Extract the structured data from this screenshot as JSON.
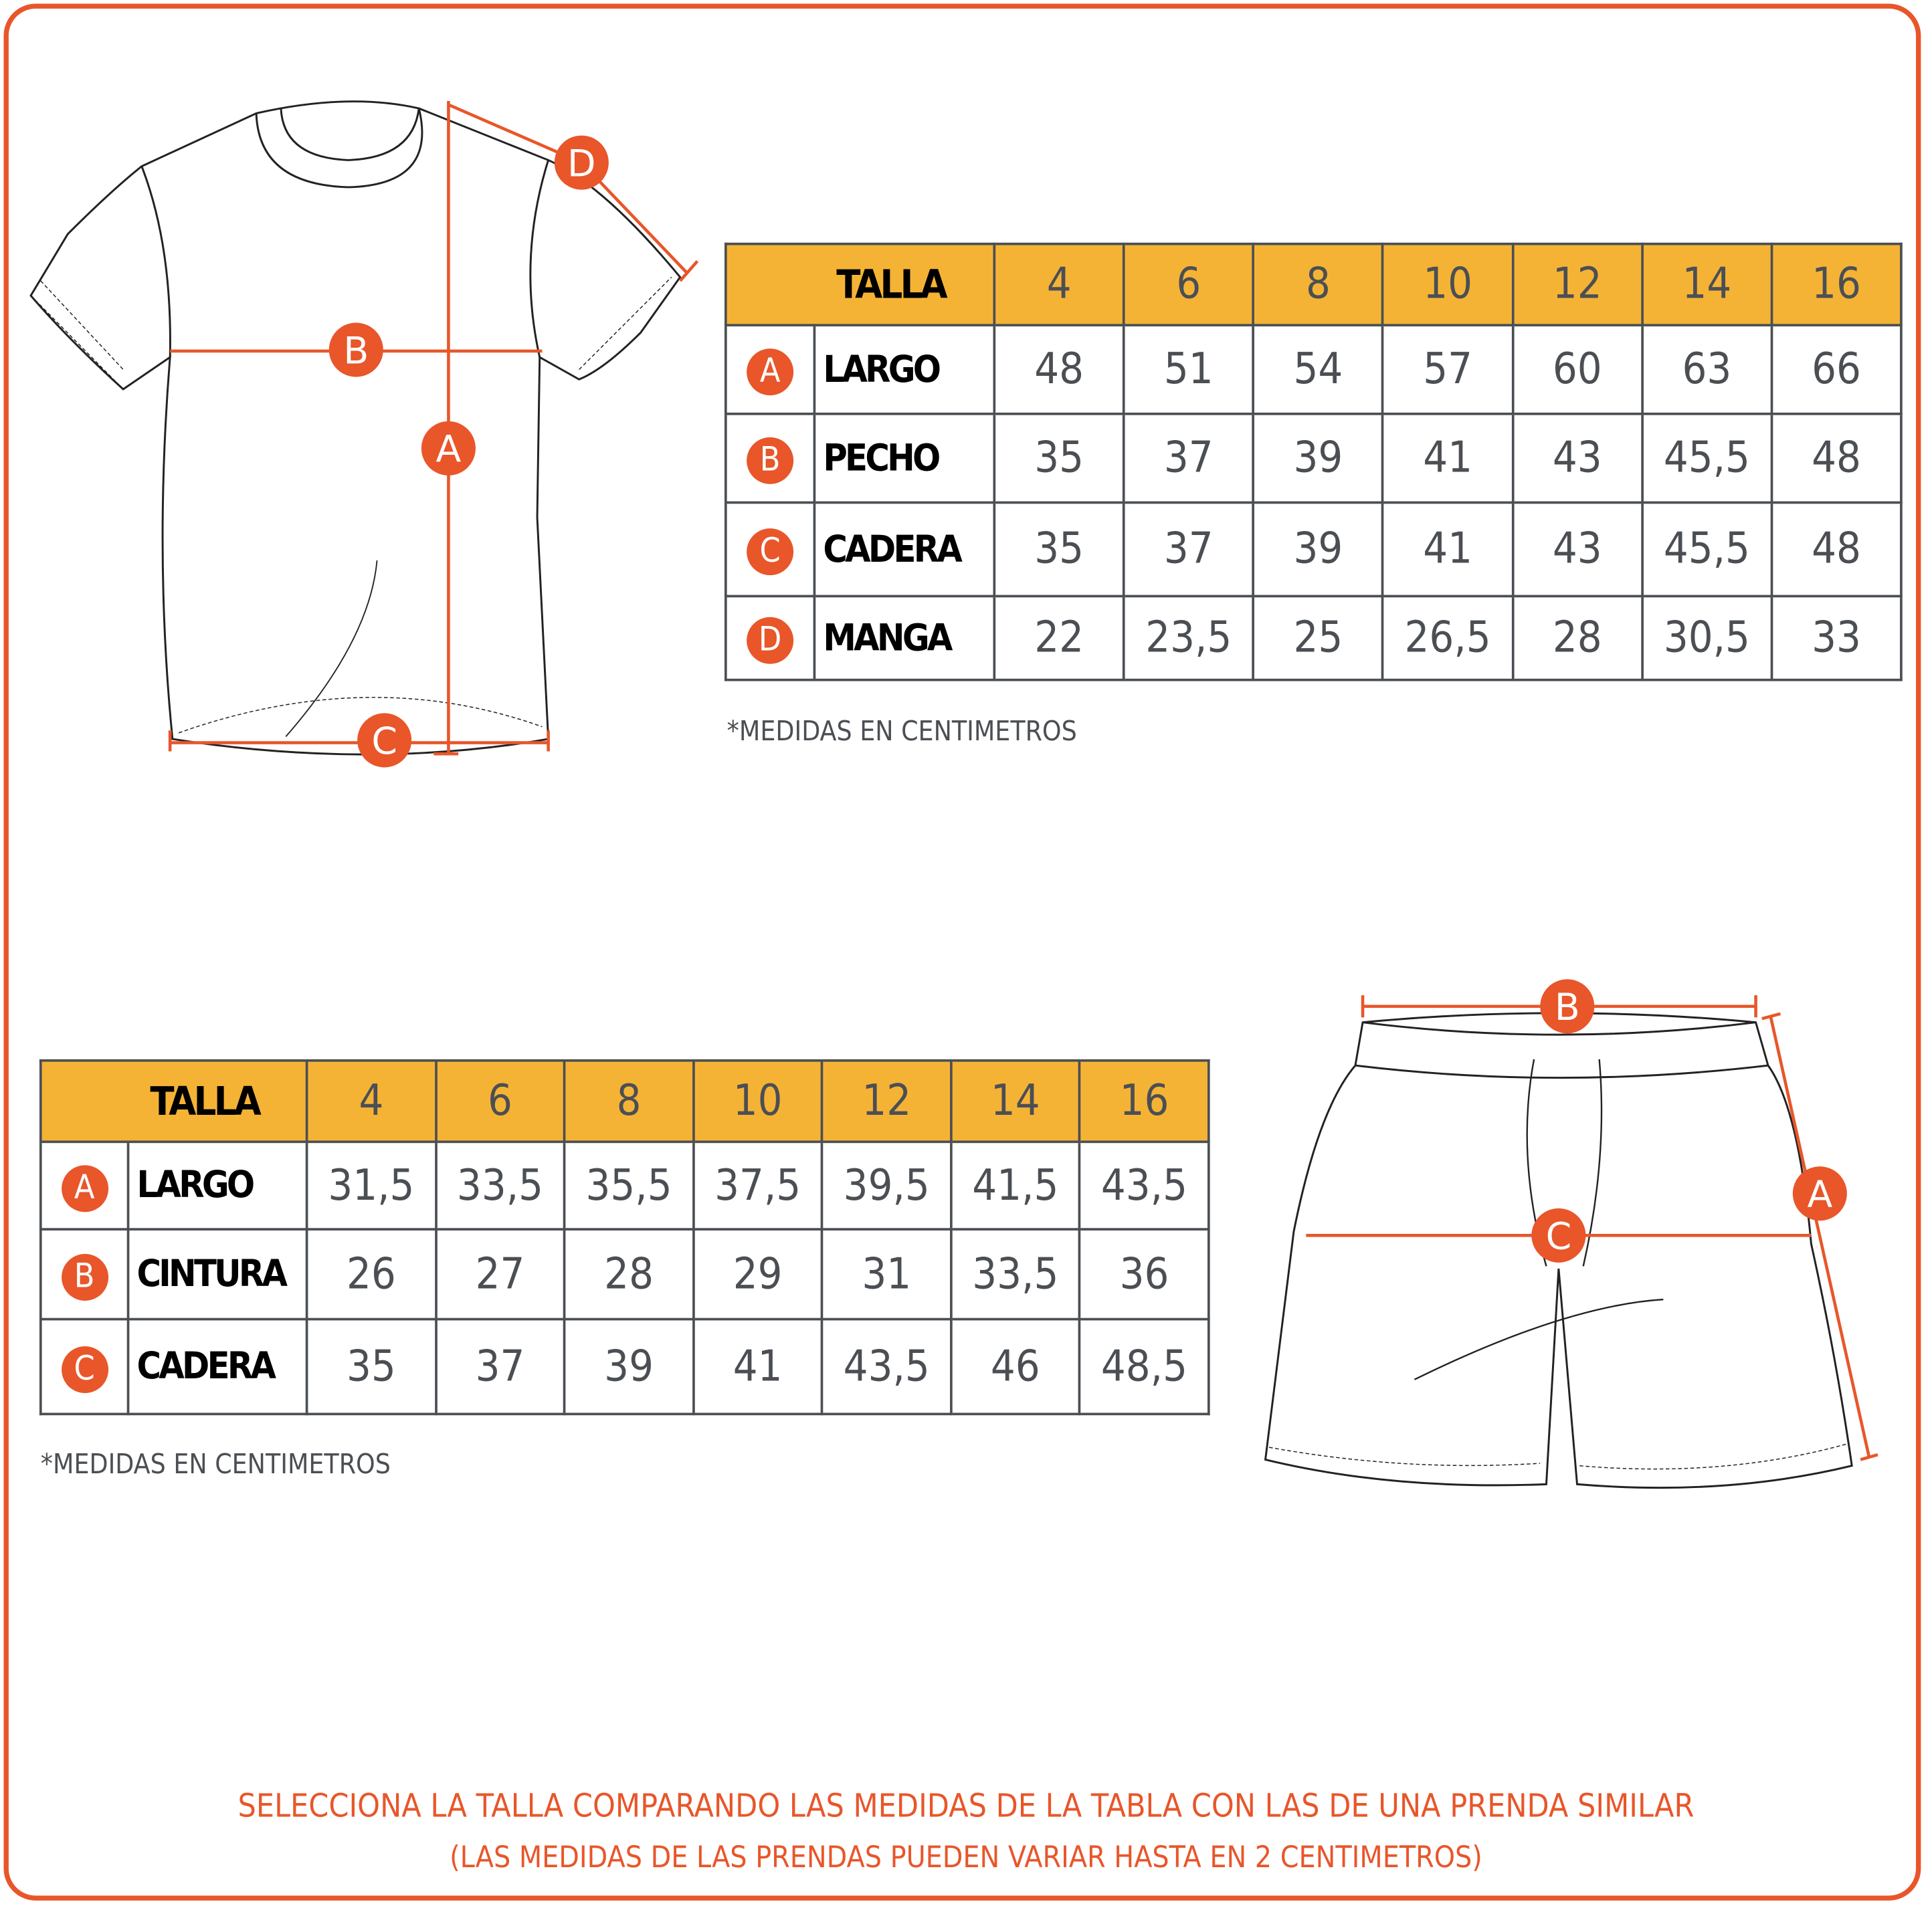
{
  "colors": {
    "accent": "#e8562a",
    "header": "#f5b335",
    "grid": "#4b4f54"
  },
  "shirt": {
    "markers": [
      "A",
      "B",
      "C",
      "D"
    ],
    "table": {
      "header": "TALLA",
      "sizes": [
        "4",
        "6",
        "8",
        "10",
        "12",
        "14",
        "16"
      ],
      "rows": [
        {
          "badge": "A",
          "label": "LARGO",
          "values": [
            "48",
            "51",
            "54",
            "57",
            "60",
            "63",
            "66"
          ]
        },
        {
          "badge": "B",
          "label": "PECHO",
          "values": [
            "35",
            "37",
            "39",
            "41",
            "43",
            "45,5",
            "48"
          ]
        },
        {
          "badge": "C",
          "label": "CADERA",
          "values": [
            "35",
            "37",
            "39",
            "41",
            "43",
            "45,5",
            "48"
          ]
        },
        {
          "badge": "D",
          "label": "MANGA",
          "values": [
            "22",
            "23,5",
            "25",
            "26,5",
            "28",
            "30,5",
            "33"
          ]
        }
      ]
    },
    "note": "*MEDIDAS EN CENTIMETROS"
  },
  "shorts": {
    "markers": [
      "A",
      "B",
      "C"
    ],
    "table": {
      "header": "TALLA",
      "sizes": [
        "4",
        "6",
        "8",
        "10",
        "12",
        "14",
        "16"
      ],
      "rows": [
        {
          "badge": "A",
          "label": "LARGO",
          "values": [
            "31,5",
            "33,5",
            "35,5",
            "37,5",
            "39,5",
            "41,5",
            "43,5"
          ]
        },
        {
          "badge": "B",
          "label": "CINTURA",
          "values": [
            "26",
            "27",
            "28",
            "29",
            "31",
            "33,5",
            "36"
          ]
        },
        {
          "badge": "C",
          "label": "CADERA",
          "values": [
            "35",
            "37",
            "39",
            "41",
            "43,5",
            "46",
            "48,5"
          ]
        }
      ]
    },
    "note": "*MEDIDAS EN CENTIMETROS"
  },
  "footer": {
    "line1": "SELECCIONA LA TALLA COMPARANDO LAS MEDIDAS DE LA TABLA CON LAS DE UNA PRENDA SIMILAR",
    "line2": "(LAS MEDIDAS DE LAS PRENDAS PUEDEN VARIAR HASTA EN 2 CENTIMETROS)"
  }
}
